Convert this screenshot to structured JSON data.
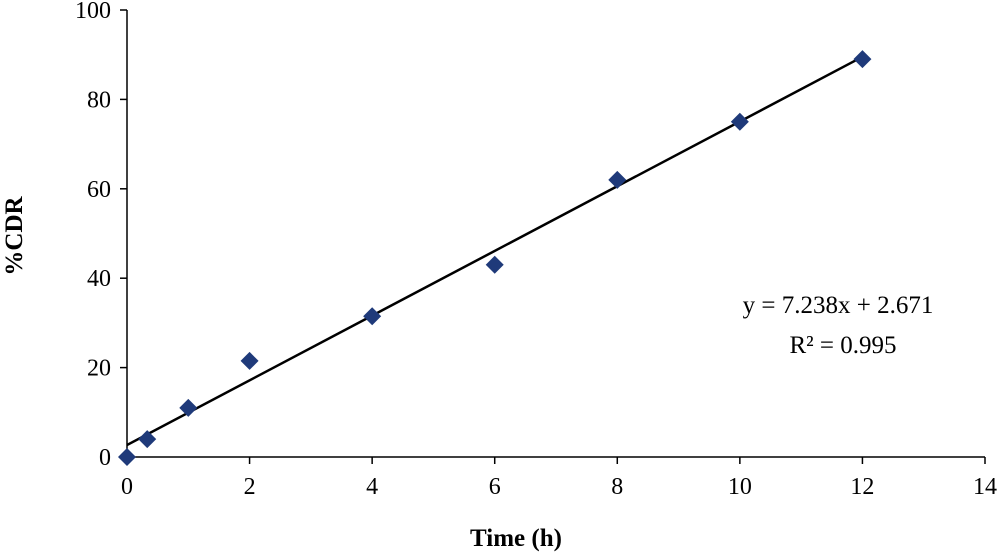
{
  "chart_data": {
    "type": "scatter",
    "title": "",
    "xlabel": "Time (h)",
    "ylabel": "%CDR",
    "xlim": [
      0,
      14
    ],
    "ylim": [
      0,
      100
    ],
    "x_ticks": [
      0,
      2,
      4,
      6,
      8,
      10,
      12,
      14
    ],
    "y_ticks": [
      0,
      20,
      40,
      60,
      80,
      100
    ],
    "grid": false,
    "legend": "none",
    "marker": "diamond",
    "marker_color": "#1f3a7a",
    "series": [
      {
        "x": [
          0,
          0.33,
          1,
          2,
          4,
          6,
          8,
          10,
          12
        ],
        "y": [
          0,
          4,
          11,
          21.5,
          31.5,
          43,
          62,
          75,
          89
        ]
      }
    ],
    "trendline": {
      "type": "linear",
      "slope": 7.238,
      "intercept": 2.671,
      "x_range": [
        0,
        12
      ],
      "color": "#000000",
      "equation_label": "y = 7.238x + 2.671",
      "r2_label": "R² = 0.995"
    }
  }
}
